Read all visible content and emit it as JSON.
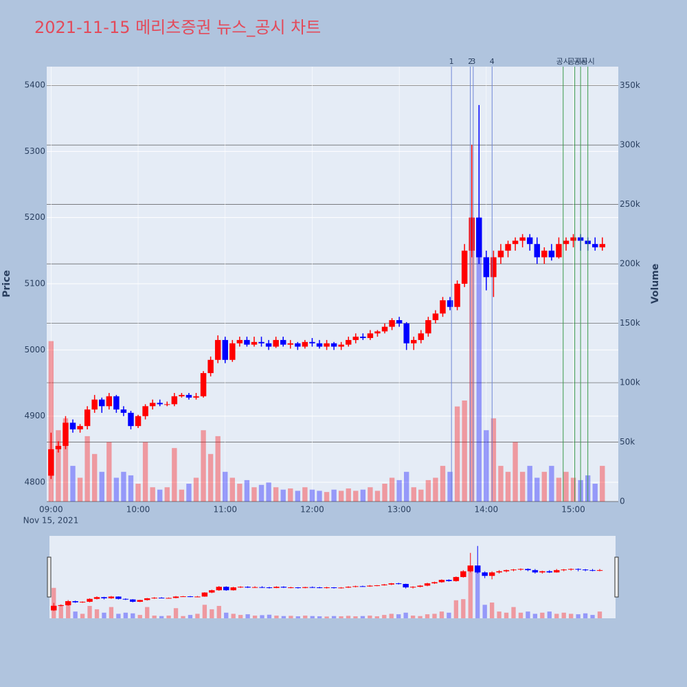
{
  "chart_data": {
    "type": "candlestick",
    "title": "2021-11-15 메리츠증권 뉴스_공시 차트",
    "y_title": "Price",
    "y2_title": "Volume",
    "x_date_label": "Nov 15, 2021",
    "increasing_color": "#ff0000",
    "decreasing_color": "#0000ff",
    "x": [
      "09:00",
      "09:05",
      "09:10",
      "09:15",
      "09:20",
      "09:25",
      "09:30",
      "09:35",
      "09:40",
      "09:45",
      "09:50",
      "09:55",
      "10:00",
      "10:05",
      "10:10",
      "10:15",
      "10:20",
      "10:25",
      "10:30",
      "10:35",
      "10:40",
      "10:45",
      "10:50",
      "10:55",
      "11:00",
      "11:05",
      "11:10",
      "11:15",
      "11:20",
      "11:25",
      "11:30",
      "11:35",
      "11:40",
      "11:45",
      "11:50",
      "11:55",
      "12:00",
      "12:05",
      "12:10",
      "12:15",
      "12:20",
      "12:25",
      "12:30",
      "12:35",
      "12:40",
      "12:45",
      "12:50",
      "12:55",
      "13:00",
      "13:05",
      "13:10",
      "13:15",
      "13:20",
      "13:25",
      "13:30",
      "13:35",
      "13:40",
      "13:45",
      "13:50",
      "13:55",
      "14:00",
      "14:05",
      "14:10",
      "14:15",
      "14:20",
      "14:25",
      "14:30",
      "14:35",
      "14:40",
      "14:45",
      "14:50",
      "14:55",
      "15:00",
      "15:05",
      "15:10",
      "15:15",
      "15:20"
    ],
    "open": [
      4810,
      4850,
      4855,
      4890,
      4880,
      4885,
      4910,
      4925,
      4915,
      4930,
      4910,
      4905,
      4885,
      4900,
      4915,
      4920,
      4918,
      4918,
      4930,
      4932,
      4928,
      4930,
      4965,
      4985,
      5015,
      4985,
      5010,
      5015,
      5008,
      5012,
      5010,
      5005,
      5015,
      5008,
      5010,
      5005,
      5012,
      5010,
      5005,
      5010,
      5005,
      5008,
      5015,
      5020,
      5018,
      5025,
      5028,
      5035,
      5045,
      5040,
      5010,
      5015,
      5025,
      5045,
      5055,
      5075,
      5065,
      5100,
      5150,
      5200,
      5140,
      5110,
      5140,
      5150,
      5160,
      5165,
      5170,
      5160,
      5140,
      5150,
      5140,
      5160,
      5165,
      5170,
      5165,
      5160,
      5155
    ],
    "high": [
      4875,
      4862,
      4900,
      4895,
      4888,
      4915,
      4932,
      4928,
      4935,
      4932,
      4915,
      4908,
      4902,
      4918,
      4925,
      4925,
      4922,
      4935,
      4935,
      4935,
      4935,
      4968,
      4990,
      5022,
      5020,
      5015,
      5020,
      5020,
      5020,
      5020,
      5015,
      5020,
      5020,
      5015,
      5012,
      5015,
      5018,
      5015,
      5015,
      5012,
      5012,
      5020,
      5025,
      5025,
      5030,
      5030,
      5040,
      5048,
      5050,
      5042,
      5020,
      5030,
      5050,
      5060,
      5080,
      5080,
      5105,
      5160,
      5310,
      5370,
      5150,
      5150,
      5160,
      5165,
      5170,
      5175,
      5175,
      5170,
      5155,
      5160,
      5170,
      5170,
      5175,
      5175,
      5170,
      5170,
      5170
    ],
    "low": [
      4805,
      4845,
      4850,
      4875,
      4875,
      4880,
      4905,
      4905,
      4910,
      4905,
      4900,
      4880,
      4882,
      4895,
      4910,
      4915,
      4915,
      4915,
      4928,
      4925,
      4925,
      4928,
      4960,
      4980,
      4980,
      4982,
      5005,
      5005,
      5005,
      5005,
      5000,
      5003,
      5005,
      5002,
      5000,
      5002,
      5005,
      5002,
      5000,
      5000,
      5000,
      5005,
      5010,
      5015,
      5015,
      5020,
      5025,
      5030,
      5035,
      5000,
      5000,
      5010,
      5020,
      5040,
      5050,
      5060,
      5060,
      5095,
      5140,
      5130,
      5090,
      5080,
      5130,
      5140,
      5150,
      5155,
      5150,
      5130,
      5130,
      5135,
      5138,
      5150,
      5155,
      5150,
      5150,
      5150,
      5150
    ],
    "close": [
      4850,
      4855,
      4890,
      4880,
      4885,
      4910,
      4925,
      4915,
      4930,
      4910,
      4905,
      4885,
      4900,
      4915,
      4920,
      4918,
      4918,
      4930,
      4932,
      4928,
      4930,
      4965,
      4985,
      5015,
      4985,
      5010,
      5015,
      5008,
      5012,
      5010,
      5005,
      5015,
      5008,
      5010,
      5005,
      5012,
      5010,
      5005,
      5010,
      5005,
      5008,
      5015,
      5020,
      5018,
      5025,
      5028,
      5035,
      5045,
      5040,
      5010,
      5015,
      5025,
      5045,
      5055,
      5075,
      5065,
      5100,
      5150,
      5200,
      5140,
      5110,
      5140,
      5150,
      5160,
      5165,
      5170,
      5160,
      5140,
      5150,
      5140,
      5160,
      5165,
      5170,
      5165,
      5160,
      5155,
      5160
    ],
    "volume": [
      135000,
      60000,
      70000,
      30000,
      20000,
      55000,
      40000,
      25000,
      50000,
      20000,
      25000,
      22000,
      15000,
      50000,
      12000,
      10000,
      12000,
      45000,
      10000,
      15000,
      20000,
      60000,
      40000,
      55000,
      25000,
      20000,
      15000,
      18000,
      12000,
      14000,
      16000,
      12000,
      10000,
      11000,
      9000,
      12000,
      10000,
      9000,
      8000,
      10000,
      9000,
      11000,
      9000,
      10000,
      12000,
      9000,
      15000,
      20000,
      18000,
      25000,
      12000,
      10000,
      18000,
      20000,
      30000,
      25000,
      80000,
      85000,
      230000,
      220000,
      60000,
      70000,
      30000,
      25000,
      50000,
      25000,
      30000,
      20000,
      25000,
      30000,
      20000,
      25000,
      20000,
      18000,
      22000,
      15000,
      30000
    ],
    "xlim": [
      "08:57",
      "15:31"
    ],
    "xticks": [
      "09:00",
      "10:00",
      "11:00",
      "12:00",
      "13:00",
      "14:00",
      "15:00"
    ],
    "ylim": [
      4771,
      5428
    ],
    "yticks": [
      4800,
      4900,
      5000,
      5100,
      5200,
      5300,
      5400
    ],
    "y2lim": [
      0,
      366000
    ],
    "y2ticks": [
      0,
      {
        "value": 50000,
        "label": "50k"
      },
      {
        "value": 100000,
        "label": "100k"
      },
      {
        "value": 150000,
        "label": "150k"
      },
      {
        "value": 200000,
        "label": "200k"
      },
      {
        "value": 250000,
        "label": "250k"
      },
      {
        "value": 300000,
        "label": "300k"
      },
      {
        "value": 350000,
        "label": "350k"
      }
    ],
    "news": [
      {
        "x": "13:36",
        "label": "1"
      },
      {
        "x": "13:49",
        "label": "2"
      },
      {
        "x": "13:51",
        "label": "3"
      },
      {
        "x": "14:04",
        "label": "4"
      }
    ],
    "news_color": "#6f86d6",
    "disclosures": [
      {
        "x": "14:53",
        "label": "공시"
      },
      {
        "x": "15:01",
        "label": "공시"
      },
      {
        "x": "15:05",
        "label": "공시"
      },
      {
        "x": "15:10",
        "label": "공시"
      }
    ],
    "disclosure_color": "#3a9a4a"
  }
}
